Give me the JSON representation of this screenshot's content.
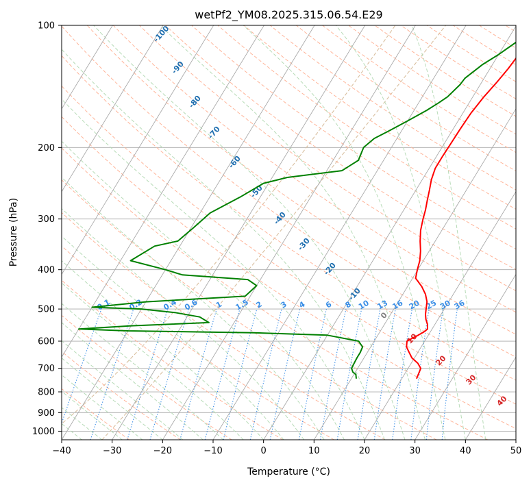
{
  "chart_data": {
    "type": "skew-t",
    "title": "wetPf2_YM08.2025.315.06.54.E29",
    "xlabel": "Temperature (°C)",
    "ylabel": "Pressure (hPa)",
    "xlim": [
      -40,
      50
    ],
    "ylim": [
      1050,
      100
    ],
    "xticks": [
      -40,
      -30,
      -20,
      -10,
      0,
      10,
      20,
      30,
      40,
      50
    ],
    "xtick_labels": [
      "−40",
      "−30",
      "−20",
      "−10",
      "0",
      "10",
      "20",
      "30",
      "40",
      "50"
    ],
    "yticks": [
      1000,
      900,
      800,
      700,
      600,
      500,
      400,
      300,
      200,
      100
    ],
    "ytick_labels": [
      "1000",
      "900",
      "800",
      "700",
      "600",
      "500",
      "400",
      "300",
      "200",
      "100"
    ],
    "colors": {
      "temperature": "#ff0000",
      "dewpoint": "#008000",
      "isotherm": "#aaaaaa",
      "dry_adiabat": "#ffb59a",
      "moist_adiabat": "#b7dbb7",
      "mixing_ratio": "#3a8ee6",
      "moist_label": "#1f6fb0",
      "dry_label": "#d62728",
      "zero_label": "#7f7f7f",
      "curve_tan": "#d9bf9f"
    },
    "series": [
      {
        "name": "Temperature",
        "points": [
          [
            22.9,
            740
          ],
          [
            22.5,
            700
          ],
          [
            21.3,
            680
          ],
          [
            19.5,
            660
          ],
          [
            18.3,
            640
          ],
          [
            17.1,
            620
          ],
          [
            16.5,
            600
          ],
          [
            17.2,
            590
          ],
          [
            18.0,
            580
          ],
          [
            18.7,
            570
          ],
          [
            19.1,
            560
          ],
          [
            18.5,
            545
          ],
          [
            17.6,
            530
          ],
          [
            16.9,
            515
          ],
          [
            16.4,
            500
          ],
          [
            15.7,
            480
          ],
          [
            14.5,
            460
          ],
          [
            12.8,
            440
          ],
          [
            10.6,
            420
          ],
          [
            9.9,
            400
          ],
          [
            9.3,
            380
          ],
          [
            8.3,
            360
          ],
          [
            7.0,
            340
          ],
          [
            5.8,
            320
          ],
          [
            4.9,
            300
          ],
          [
            4.3,
            285
          ],
          [
            3.5,
            270
          ],
          [
            2.7,
            255
          ],
          [
            1.8,
            240
          ],
          [
            1.2,
            225
          ],
          [
            1.2,
            210
          ],
          [
            1.3,
            195
          ],
          [
            1.4,
            180
          ],
          [
            1.6,
            165
          ],
          [
            2.2,
            150
          ],
          [
            3.0,
            138
          ],
          [
            3.6,
            128
          ],
          [
            4.0,
            118
          ],
          [
            4.3,
            110
          ],
          [
            4.6,
            100
          ]
        ]
      },
      {
        "name": "Dewpoint",
        "points": [
          [
            10.9,
            740
          ],
          [
            10.4,
            725
          ],
          [
            9.5,
            715
          ],
          [
            8.8,
            700
          ],
          [
            8.7,
            680
          ],
          [
            8.6,
            660
          ],
          [
            8.6,
            640
          ],
          [
            8.4,
            620
          ],
          [
            6.9,
            600
          ],
          [
            0.0,
            580
          ],
          [
            -15.0,
            572
          ],
          [
            -40.0,
            566
          ],
          [
            -50.0,
            560
          ],
          [
            -40.0,
            550
          ],
          [
            -25.0,
            540
          ],
          [
            -27.5,
            523
          ],
          [
            -33.0,
            510
          ],
          [
            -40.0,
            500
          ],
          [
            -50.0,
            495
          ],
          [
            -40.0,
            480
          ],
          [
            -21.0,
            465
          ],
          [
            -20.0,
            438
          ],
          [
            -22.5,
            423
          ],
          [
            -36.0,
            412
          ],
          [
            -40.0,
            400
          ],
          [
            -48.0,
            380
          ],
          [
            -45.0,
            350
          ],
          [
            -41.0,
            340
          ],
          [
            -39.5,
            315
          ],
          [
            -38.0,
            290
          ],
          [
            -34.0,
            265
          ],
          [
            -31.0,
            245
          ],
          [
            -27.0,
            237
          ],
          [
            -17.0,
            228
          ],
          [
            -15.0,
            215
          ],
          [
            -15.5,
            200
          ],
          [
            -14.5,
            190
          ],
          [
            -12.5,
            182
          ],
          [
            -10.0,
            172
          ],
          [
            -7.5,
            162
          ],
          [
            -6.0,
            155
          ],
          [
            -5.0,
            150
          ],
          [
            -4.0,
            140
          ],
          [
            -3.8,
            135
          ],
          [
            -2.0,
            125
          ],
          [
            0.0,
            118
          ],
          [
            2.0,
            110
          ],
          [
            4.0,
            100
          ]
        ]
      }
    ],
    "moist_adiabat_labels": [
      "-100",
      "-90",
      "-80",
      "-70",
      "-60",
      "-50",
      "-40",
      "-30",
      "-20",
      "-10",
      "0"
    ],
    "dry_adiabat_labels": [
      "10",
      "20",
      "30",
      "40"
    ],
    "mixing_ratio_labels": [
      "0.1",
      "0.2",
      "0.4",
      "0.6",
      "1",
      "1.5",
      "2",
      "3",
      "4",
      "6",
      "8",
      "10",
      "13",
      "16",
      "20",
      "25",
      "30",
      "36"
    ]
  }
}
